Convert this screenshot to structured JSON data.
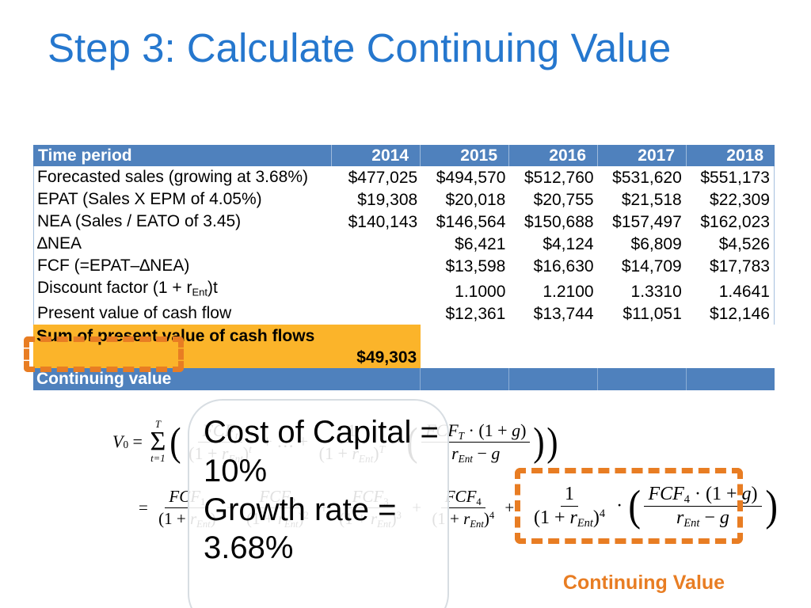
{
  "slide_title": "Step 3: Calculate Continuing Value",
  "table": {
    "columns": [
      "Time period",
      "2014",
      "2015",
      "2016",
      "2017",
      "2018"
    ],
    "rows": [
      {
        "label": "Forecasted sales (growing at 3.68%)",
        "values": [
          "$477,025",
          "$494,570",
          "$512,760",
          "$531,620",
          "$551,173"
        ]
      },
      {
        "label": "EPAT (Sales X EPM of 4.05%)",
        "values": [
          "$19,308",
          "$20,018",
          "$20,755",
          "$21,518",
          "$22,309"
        ]
      },
      {
        "label": "NEA (Sales / EATO of 3.45)",
        "values": [
          "$140,143",
          "$146,564",
          "$150,688",
          "$157,497",
          "$162,023"
        ]
      },
      {
        "label": "∆NEA",
        "values": [
          "",
          "$6,421",
          "$4,124",
          "$6,809",
          "$4,526"
        ]
      },
      {
        "label": "FCF (=EPAT–∆NEA)",
        "values": [
          "",
          "$13,598",
          "$16,630",
          "$14,709",
          "$17,783"
        ]
      },
      {
        "label_parts": [
          "Discount factor (1 + r",
          "Ent",
          ")t"
        ],
        "values": [
          "",
          "1.1000",
          "1.2100",
          "1.3310",
          "1.4641"
        ]
      },
      {
        "label": "Present value of cash flow",
        "values": [
          "",
          "$12,361",
          "$13,744",
          "$11,051",
          "$12,146"
        ]
      }
    ],
    "sum_row": {
      "label": "Sum of present value of cash flows",
      "value": "$49,303"
    },
    "continuing_value_row_label": "Continuing value"
  },
  "callout": {
    "line1": "Cost of Capital = 10%",
    "line2": "Growth rate = 3.68%"
  },
  "annotations": {
    "continuing_value_label": "Continuing Value"
  },
  "colors": {
    "title_blue": "#2577CE",
    "header_blue": "#4F81BD",
    "highlight_orange": "#FBB42A",
    "dash_orange": "#E87D23",
    "table_border": "#A6C0DE"
  },
  "formulas": {
    "line1": [
      {
        "v": "V",
        "i": 1
      },
      {
        "sub": "0",
        "up": 1
      },
      {
        "v": " = "
      },
      {
        "sum": {
          "top": "T",
          "bot": "t=1"
        }
      },
      {
        "big": "("
      },
      {
        "frac": {
          "num": [
            {
              "v": "FCF",
              "i": 1
            },
            {
              "sub": "t"
            }
          ],
          "den": [
            {
              "v": "(1 + "
            },
            {
              "v": "r",
              "i": 1
            },
            {
              "sub": "Ent"
            },
            {
              "v": ")"
            },
            {
              "sup": "t"
            }
          ]
        }
      },
      {
        "v": " + … + "
      },
      {
        "frac": {
          "num": [
            {
              "v": "1"
            }
          ],
          "den": [
            {
              "v": "(1 + "
            },
            {
              "v": "r",
              "i": 1
            },
            {
              "sub": "Ent"
            },
            {
              "v": ")"
            },
            {
              "sup": "T"
            }
          ]
        }
      },
      {
        "v": " · "
      },
      {
        "big": "("
      },
      {
        "frac": {
          "num": [
            {
              "v": "FCF",
              "i": 1
            },
            {
              "sub": "T"
            },
            {
              "v": " · (1 + "
            },
            {
              "v": "g",
              "i": 1
            },
            {
              "v": ")"
            }
          ],
          "den": [
            {
              "v": "r",
              "i": 1
            },
            {
              "sub": "Ent"
            },
            {
              "v": " − "
            },
            {
              "v": "g",
              "i": 1
            }
          ]
        }
      },
      {
        "big": ")"
      },
      {
        "big": ")"
      }
    ],
    "line2_left": [
      {
        "v": "= "
      },
      {
        "frac": {
          "num": [
            {
              "v": "FCF",
              "i": 1
            },
            {
              "sub": "1",
              "up": 1
            }
          ],
          "den": [
            {
              "v": "(1 + "
            },
            {
              "v": "r",
              "i": 1
            },
            {
              "sub": "Ent"
            },
            {
              "v": ")"
            }
          ]
        }
      },
      {
        "v": " + "
      },
      {
        "frac": {
          "num": [
            {
              "v": "FCF",
              "i": 1
            },
            {
              "sub": "2",
              "up": 1
            }
          ],
          "den": [
            {
              "v": "(1 + "
            },
            {
              "v": "r",
              "i": 1
            },
            {
              "sub": "Ent"
            },
            {
              "v": ")"
            },
            {
              "sup": "2",
              "up": 1
            }
          ]
        }
      },
      {
        "v": " + "
      },
      {
        "frac": {
          "num": [
            {
              "v": "FCF",
              "i": 1
            },
            {
              "sub": "3",
              "up": 1
            }
          ],
          "den": [
            {
              "v": "(1 + "
            },
            {
              "v": "r",
              "i": 1
            },
            {
              "sub": "Ent"
            },
            {
              "v": ")"
            },
            {
              "sup": "3",
              "up": 1
            }
          ]
        }
      },
      {
        "v": " + "
      },
      {
        "frac": {
          "num": [
            {
              "v": "FCF",
              "i": 1
            },
            {
              "sub": "4",
              "up": 1
            }
          ],
          "den": [
            {
              "v": "(1 + "
            },
            {
              "v": "r",
              "i": 1
            },
            {
              "sub": "Ent"
            },
            {
              "v": ")"
            },
            {
              "sup": "4",
              "up": 1
            }
          ]
        }
      },
      {
        "v": " + "
      }
    ],
    "line2_boxed": [
      {
        "frac": {
          "num": [
            {
              "v": "1"
            }
          ],
          "den": [
            {
              "v": "(1 + "
            },
            {
              "v": "r",
              "i": 1
            },
            {
              "sub": "Ent"
            },
            {
              "v": ")"
            },
            {
              "sup": "4",
              "up": 1
            }
          ]
        }
      },
      {
        "v": " · "
      },
      {
        "big": "("
      },
      {
        "frac": {
          "num": [
            {
              "v": "FCF",
              "i": 1
            },
            {
              "sub": "4",
              "up": 1
            },
            {
              "v": " · (1 + "
            },
            {
              "v": "g",
              "i": 1
            },
            {
              "v": ")"
            }
          ],
          "den": [
            {
              "v": "r",
              "i": 1
            },
            {
              "sub": "Ent"
            },
            {
              "v": " − "
            },
            {
              "v": "g",
              "i": 1
            }
          ]
        }
      },
      {
        "big": ")"
      }
    ]
  }
}
